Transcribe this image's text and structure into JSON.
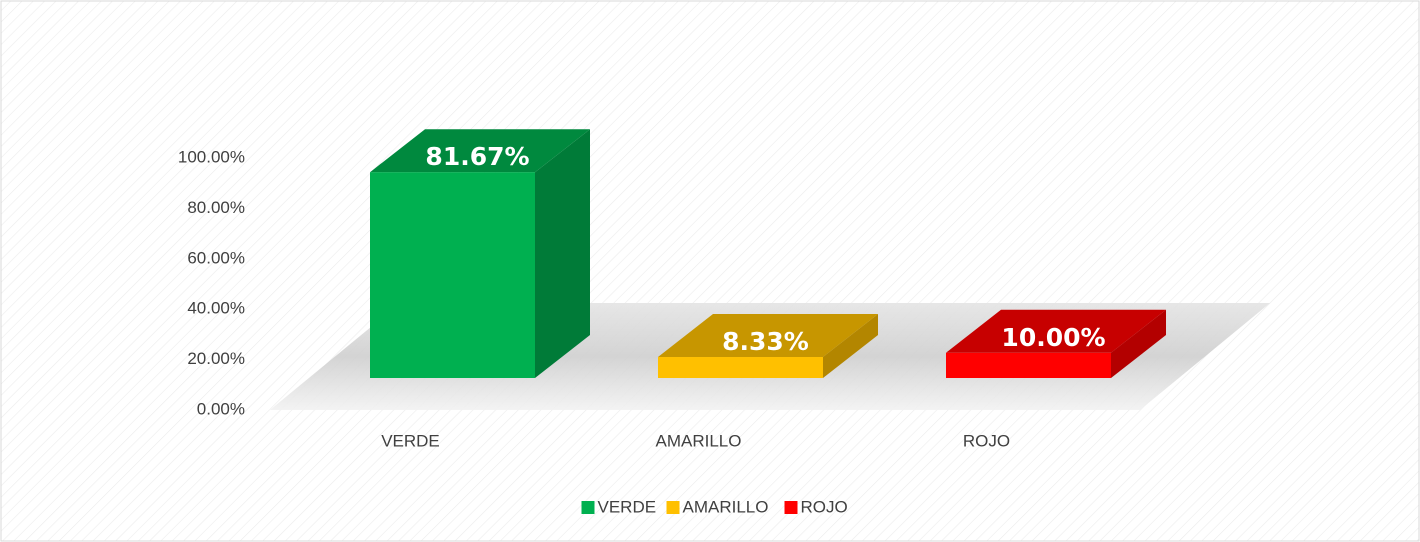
{
  "chart_data": {
    "type": "bar3d",
    "categories": [
      "VERDE",
      "AMARILLO",
      "ROJO"
    ],
    "values": [
      81.67,
      8.33,
      10.0
    ],
    "value_labels": [
      "81.67%",
      "8.33%",
      "10.00%"
    ],
    "colors": [
      "#00b050",
      "#ffc000",
      "#ff0000"
    ],
    "ylim": [
      0,
      100
    ],
    "yticks": [
      {
        "value": 0,
        "label": "0.00%"
      },
      {
        "value": 20,
        "label": "20.00%"
      },
      {
        "value": 40,
        "label": "40.00%"
      },
      {
        "value": 60,
        "label": "60.00%"
      },
      {
        "value": 80,
        "label": "80.00%"
      },
      {
        "value": 100,
        "label": "100.00%"
      }
    ],
    "legend": "bottom"
  }
}
